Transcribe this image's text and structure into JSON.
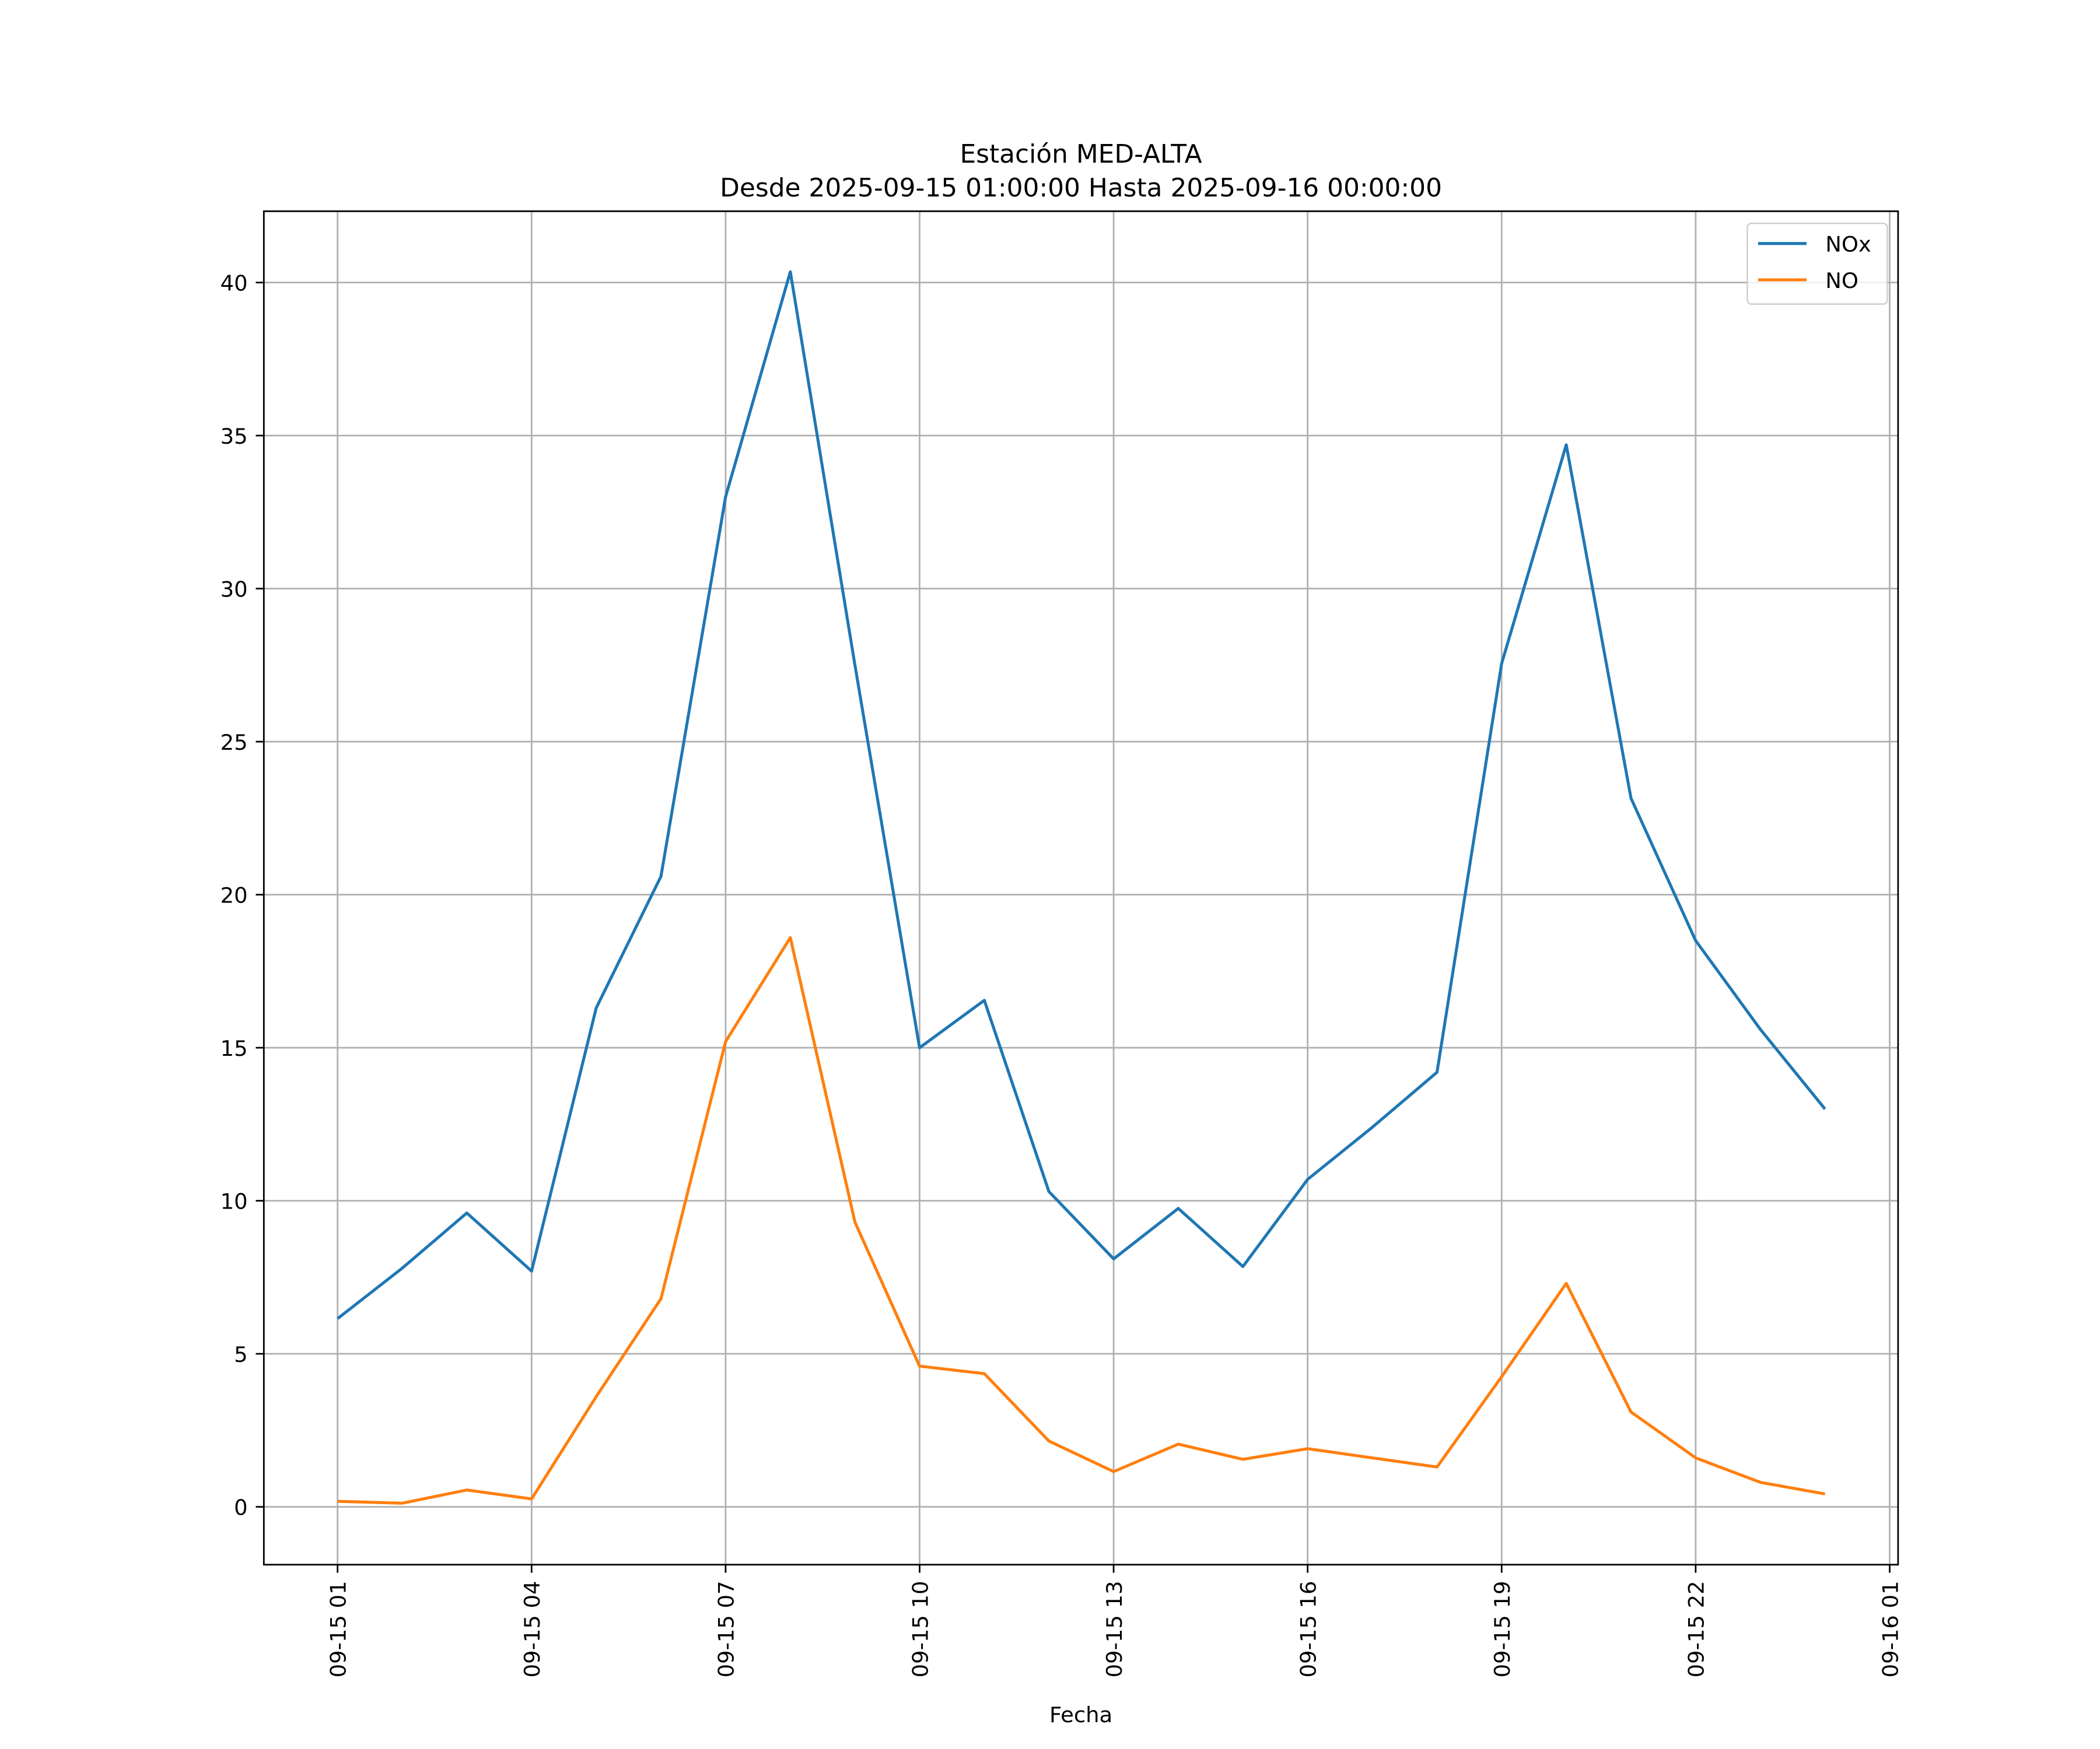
{
  "chart_data": {
    "type": "line",
    "title": "Estación MED-ALTA",
    "subtitle": "Desde 2025-09-15 01:00:00 Hasta 2025-09-16 00:00:00",
    "xlabel": "Fecha",
    "ylabel": "",
    "x_hours": [
      1,
      2,
      3,
      4,
      5,
      6,
      7,
      8,
      9,
      10,
      11,
      12,
      13,
      14,
      15,
      16,
      17,
      18,
      19,
      20,
      21,
      22,
      23,
      24
    ],
    "series": [
      {
        "name": "NOx",
        "color": "#1f77b4",
        "values": [
          6.15,
          7.8,
          9.6,
          7.7,
          16.3,
          20.6,
          33.0,
          40.35,
          27.5,
          15.0,
          16.55,
          10.3,
          8.1,
          9.75,
          7.85,
          10.7,
          12.4,
          14.2,
          27.55,
          34.7,
          23.15,
          18.5,
          15.6,
          13.0
        ]
      },
      {
        "name": "NO",
        "color": "#ff7f0e",
        "values": [
          0.18,
          0.12,
          0.55,
          0.26,
          3.6,
          6.8,
          15.2,
          18.6,
          9.3,
          4.6,
          4.35,
          2.15,
          1.15,
          2.05,
          1.55,
          1.9,
          1.6,
          1.3,
          4.25,
          7.3,
          3.1,
          1.6,
          0.8,
          0.42
        ]
      }
    ],
    "xlim_hours": [
      -0.14,
      25.13
    ],
    "ylim": [
      -1.89,
      42.33
    ],
    "yticks": [
      0,
      5,
      10,
      15,
      20,
      25,
      30,
      35,
      40
    ],
    "xticks": [
      {
        "hour": 1,
        "label": "09-15 01"
      },
      {
        "hour": 4,
        "label": "09-15 04"
      },
      {
        "hour": 7,
        "label": "09-15 07"
      },
      {
        "hour": 10,
        "label": "09-15 10"
      },
      {
        "hour": 13,
        "label": "09-15 13"
      },
      {
        "hour": 16,
        "label": "09-15 16"
      },
      {
        "hour": 19,
        "label": "09-15 19"
      },
      {
        "hour": 22,
        "label": "09-15 22"
      },
      {
        "hour": 25,
        "label": "09-16 01"
      }
    ],
    "grid": true,
    "legend_position": "top-right"
  }
}
